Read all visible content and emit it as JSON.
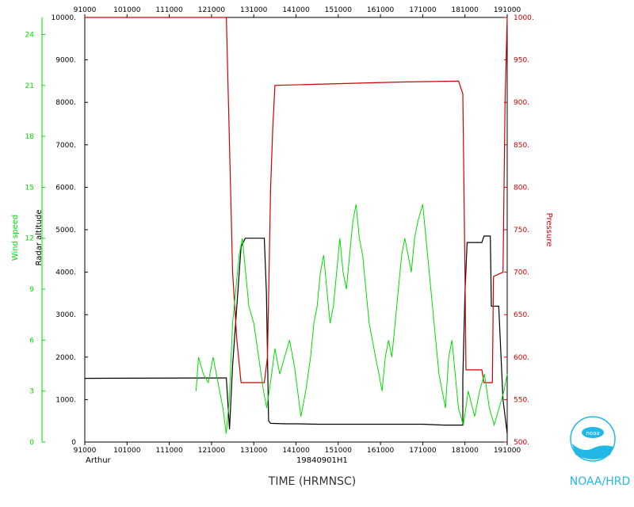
{
  "chart_data": {
    "type": "line",
    "title": "",
    "storm_name": "Arthur",
    "flight_id": "19840901H1",
    "xlabel": "TIME (HRMNSC)",
    "x_ticks": [
      "91000",
      "101000",
      "111000",
      "121000",
      "131000",
      "141000",
      "151000",
      "161000",
      "171000",
      "181000",
      "191000"
    ],
    "axes": {
      "wind": {
        "label": "Wind speed",
        "color": "#00dd00",
        "range": [
          0,
          25
        ],
        "ticks": [
          "0",
          "3",
          "6",
          "9",
          "12",
          "15",
          "18",
          "21",
          "24"
        ],
        "tick_values": [
          0,
          3,
          6,
          9,
          12,
          15,
          18,
          21,
          24
        ]
      },
      "altitude": {
        "label": "Radar altitude",
        "color": "#000000",
        "range": [
          0,
          10000
        ],
        "ticks": [
          "0",
          "1000.",
          "2000.",
          "3000.",
          "4000.",
          "5000.",
          "6000.",
          "7000.",
          "8000.",
          "9000.",
          "10000."
        ],
        "tick_values": [
          0,
          1000,
          2000,
          3000,
          4000,
          5000,
          6000,
          7000,
          8000,
          9000,
          10000
        ]
      },
      "pressure": {
        "label": "Pressure",
        "color": "#cc0000",
        "range": [
          500,
          1000
        ],
        "ticks": [
          "500.",
          "550.",
          "600.",
          "650.",
          "700.",
          "750.",
          "800.",
          "850.",
          "900.",
          "950.",
          "1000."
        ],
        "tick_values": [
          500,
          550,
          600,
          650,
          700,
          750,
          800,
          850,
          900,
          950,
          1000
        ]
      }
    },
    "series": [
      {
        "name": "Radar altitude",
        "axis": "altitude",
        "color": "#000000",
        "points": [
          [
            0,
            1500
          ],
          [
            6,
            1510
          ],
          [
            6.7,
            1510
          ],
          [
            6.85,
            300
          ],
          [
            7.0,
            1800
          ],
          [
            7.4,
            4600
          ],
          [
            7.6,
            4800
          ],
          [
            8.5,
            4800
          ],
          [
            8.6,
            3500
          ],
          [
            8.7,
            500
          ],
          [
            8.8,
            440
          ],
          [
            9.5,
            430
          ],
          [
            10,
            430
          ],
          [
            11,
            420
          ],
          [
            12,
            420
          ],
          [
            13,
            420
          ],
          [
            14,
            420
          ],
          [
            15,
            420
          ],
          [
            16,
            420
          ],
          [
            17,
            400
          ],
          [
            17.9,
            400
          ],
          [
            17.9,
            1500
          ],
          [
            18.0,
            3500
          ],
          [
            18.1,
            4700
          ],
          [
            18.8,
            4700
          ],
          [
            18.9,
            4850
          ],
          [
            19.2,
            4850
          ],
          [
            19.25,
            3200
          ],
          [
            19.6,
            3200
          ],
          [
            19.8,
            1000
          ],
          [
            20,
            200
          ]
        ]
      },
      {
        "name": "Pressure",
        "axis": "pressure",
        "color": "#cc0000",
        "points": [
          [
            0,
            1000
          ],
          [
            6.7,
            1000
          ],
          [
            6.85,
            850
          ],
          [
            7.0,
            700
          ],
          [
            7.2,
            620
          ],
          [
            7.4,
            570
          ],
          [
            8.5,
            570
          ],
          [
            8.65,
            600
          ],
          [
            8.8,
            800
          ],
          [
            8.9,
            870
          ],
          [
            9.0,
            920
          ],
          [
            12,
            922
          ],
          [
            15,
            924
          ],
          [
            17.7,
            925
          ],
          [
            17.9,
            910
          ],
          [
            18.0,
            700
          ],
          [
            18.05,
            585
          ],
          [
            18.8,
            585
          ],
          [
            18.9,
            570
          ],
          [
            19.3,
            570
          ],
          [
            19.35,
            695
          ],
          [
            19.8,
            700
          ],
          [
            19.9,
            900
          ],
          [
            20,
            1000
          ]
        ]
      },
      {
        "name": "Wind speed",
        "axis": "wind",
        "color": "#00dd00",
        "points": [
          [
            6.85,
            3
          ],
          [
            7.0,
            5
          ],
          [
            7.3,
            4
          ],
          [
            7.6,
            3.5
          ],
          [
            7.9,
            5
          ],
          [
            8.2,
            3.5
          ],
          [
            8.5,
            2
          ],
          [
            8.7,
            0.5
          ],
          [
            8.9,
            2.5
          ],
          [
            9.1,
            7
          ],
          [
            9.3,
            9
          ],
          [
            9.5,
            11
          ],
          [
            9.7,
            12
          ],
          [
            9.9,
            10
          ],
          [
            10.1,
            8
          ],
          [
            10.4,
            7
          ],
          [
            10.7,
            5
          ],
          [
            11.0,
            3
          ],
          [
            11.2,
            2
          ],
          [
            11.5,
            4
          ],
          [
            11.7,
            5.5
          ],
          [
            12.0,
            4
          ],
          [
            12.3,
            5
          ],
          [
            12.6,
            6
          ],
          [
            12.9,
            4.5
          ],
          [
            13.1,
            3
          ],
          [
            13.3,
            1.5
          ],
          [
            13.6,
            3
          ],
          [
            13.9,
            5
          ],
          [
            14.1,
            7
          ],
          [
            14.3,
            8
          ],
          [
            14.5,
            10
          ],
          [
            14.7,
            11
          ],
          [
            14.9,
            9
          ],
          [
            15.1,
            7
          ],
          [
            15.3,
            8
          ],
          [
            15.5,
            10
          ],
          [
            15.7,
            12
          ],
          [
            15.9,
            10
          ],
          [
            16.1,
            9
          ],
          [
            16.3,
            11
          ],
          [
            16.5,
            13
          ],
          [
            16.7,
            14
          ],
          [
            16.9,
            12
          ],
          [
            17.1,
            11
          ],
          [
            17.3,
            9
          ],
          [
            17.5,
            7
          ],
          [
            17.7,
            6
          ],
          [
            17.9,
            5
          ],
          [
            18.1,
            4
          ],
          [
            18.3,
            3
          ],
          [
            18.5,
            5
          ],
          [
            18.7,
            6
          ],
          [
            18.9,
            5
          ],
          [
            19.1,
            7
          ],
          [
            19.3,
            9
          ],
          [
            19.5,
            11
          ],
          [
            19.7,
            12
          ],
          [
            19.9,
            11
          ],
          [
            20.1,
            10
          ],
          [
            20.3,
            12
          ],
          [
            20.5,
            13
          ],
          [
            20.8,
            14
          ],
          [
            21.0,
            12
          ],
          [
            21.2,
            10
          ],
          [
            21.4,
            8
          ],
          [
            21.6,
            6
          ],
          [
            21.8,
            4
          ],
          [
            22.0,
            3
          ],
          [
            22.2,
            2
          ],
          [
            22.4,
            5
          ],
          [
            22.6,
            6
          ],
          [
            22.8,
            4
          ],
          [
            23.0,
            2
          ],
          [
            23.3,
            1
          ],
          [
            23.6,
            3
          ],
          [
            24.0,
            1.5
          ],
          [
            24.3,
            3
          ],
          [
            24.6,
            4
          ],
          [
            24.9,
            2
          ],
          [
            25.2,
            1
          ],
          [
            25.5,
            2
          ],
          [
            25.8,
            3
          ],
          [
            26.0,
            4
          ]
        ]
      }
    ]
  },
  "logo": {
    "text": "NOAA/HRD",
    "badge": "noaa"
  }
}
